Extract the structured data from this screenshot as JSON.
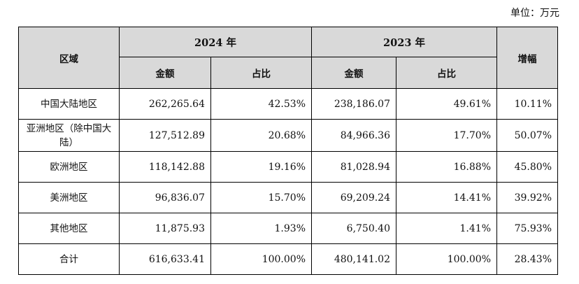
{
  "unit_label": "单位：万元",
  "header": {
    "region": "区域",
    "year_2024": "2024 年",
    "year_2023": "2023 年",
    "growth": "增幅",
    "amount": "金额",
    "share": "占比"
  },
  "rows": [
    {
      "region": "中国大陆地区",
      "amount_2024": "262,265.64",
      "share_2024": "42.53%",
      "amount_2023": "238,186.07",
      "share_2023": "49.61%",
      "growth": "10.11%"
    },
    {
      "region": "亚洲地区（除中国大陆）",
      "amount_2024": "127,512.89",
      "share_2024": "20.68%",
      "amount_2023": "84,966.36",
      "share_2023": "17.70%",
      "growth": "50.07%"
    },
    {
      "region": "欧洲地区",
      "amount_2024": "118,142.88",
      "share_2024": "19.16%",
      "amount_2023": "81,028.94",
      "share_2023": "16.88%",
      "growth": "45.80%"
    },
    {
      "region": "美洲地区",
      "amount_2024": "96,836.07",
      "share_2024": "15.70%",
      "amount_2023": "69,209.24",
      "share_2023": "14.41%",
      "growth": "39.92%"
    },
    {
      "region": "其他地区",
      "amount_2024": "11,875.93",
      "share_2024": "1.93%",
      "amount_2023": "6,750.40",
      "share_2023": "1.41%",
      "growth": "75.93%"
    },
    {
      "region": "合计",
      "amount_2024": "616,633.41",
      "share_2024": "100.00%",
      "amount_2023": "480,141.02",
      "share_2023": "100.00%",
      "growth": "28.43%"
    }
  ]
}
